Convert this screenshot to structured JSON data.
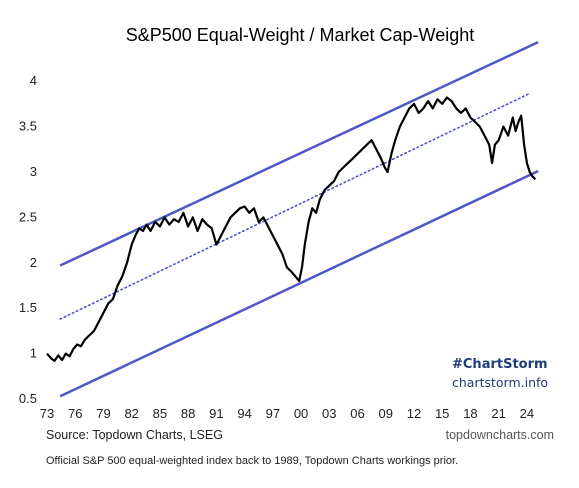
{
  "chart_data": {
    "type": "line",
    "title": "S&P500 Equal-Weight / Market Cap-Weight",
    "xlabel": "",
    "ylabel": "",
    "xlim": [
      1973.0,
      2025.5
    ],
    "ylim": [
      0.5,
      4.2
    ],
    "x_tick_labels": [
      "73",
      "76",
      "79",
      "82",
      "85",
      "88",
      "91",
      "94",
      "97",
      "00",
      "03",
      "06",
      "09",
      "12",
      "15",
      "18",
      "21",
      "24"
    ],
    "x_tick_years": [
      1973,
      1976,
      1979,
      1982,
      1985,
      1988,
      1991,
      1994,
      1997,
      2000,
      2003,
      2006,
      2009,
      2012,
      2015,
      2018,
      2021,
      2024
    ],
    "y_ticks": [
      0.5,
      1,
      1.5,
      2,
      2.5,
      3,
      3.5,
      4
    ],
    "y_tick_labels": [
      "0.5",
      "1",
      "1.5",
      "2",
      "2.5",
      "3",
      "3.5",
      "4"
    ],
    "series": [
      {
        "color": "#000000",
        "x": [
          1973.0,
          1973.4,
          1973.8,
          1974.2,
          1974.6,
          1975.0,
          1975.4,
          1975.8,
          1976.2,
          1976.6,
          1977.0,
          1977.5,
          1978.0,
          1978.5,
          1979.0,
          1979.5,
          1980.0,
          1980.5,
          1981.0,
          1981.5,
          1982.0,
          1982.4,
          1982.8,
          1983.2,
          1983.6,
          1984.0,
          1984.5,
          1985.0,
          1985.5,
          1986.0,
          1986.5,
          1987.0,
          1987.5,
          1988.0,
          1988.5,
          1989.0,
          1989.5,
          1990.0,
          1990.5,
          1991.0,
          1991.5,
          1992.0,
          1992.5,
          1993.0,
          1993.5,
          1994.0,
          1994.5,
          1995.0,
          1995.5,
          1996.0,
          1996.5,
          1997.0,
          1997.5,
          1998.0,
          1998.5,
          1999.0,
          1999.4,
          1999.8,
          2000.1,
          2000.4,
          2000.8,
          2001.2,
          2001.6,
          2002.0,
          2002.5,
          2003.0,
          2003.5,
          2004.0,
          2004.5,
          2005.0,
          2005.5,
          2006.0,
          2006.5,
          2007.0,
          2007.5,
          2008.0,
          2008.5,
          2008.9,
          2009.2,
          2009.6,
          2010.0,
          2010.5,
          2011.0,
          2011.5,
          2012.0,
          2012.5,
          2013.0,
          2013.5,
          2014.0,
          2014.5,
          2015.0,
          2015.5,
          2016.0,
          2016.5,
          2017.0,
          2017.5,
          2018.0,
          2018.5,
          2019.0,
          2019.5,
          2020.0,
          2020.3,
          2020.6,
          2021.0,
          2021.5,
          2022.0,
          2022.5,
          2022.8,
          2023.1,
          2023.4,
          2023.7,
          2024.0,
          2024.3,
          2024.6,
          2024.9
        ],
        "y": [
          1.0,
          0.95,
          0.92,
          0.98,
          0.93,
          1.0,
          0.97,
          1.05,
          1.1,
          1.08,
          1.15,
          1.2,
          1.25,
          1.35,
          1.45,
          1.55,
          1.6,
          1.75,
          1.85,
          2.0,
          2.2,
          2.3,
          2.38,
          2.35,
          2.42,
          2.35,
          2.45,
          2.4,
          2.5,
          2.42,
          2.48,
          2.45,
          2.55,
          2.4,
          2.5,
          2.35,
          2.48,
          2.42,
          2.38,
          2.2,
          2.3,
          2.4,
          2.5,
          2.55,
          2.6,
          2.62,
          2.55,
          2.6,
          2.45,
          2.5,
          2.4,
          2.3,
          2.2,
          2.1,
          1.95,
          1.9,
          1.85,
          1.8,
          1.95,
          2.2,
          2.45,
          2.6,
          2.55,
          2.7,
          2.8,
          2.85,
          2.9,
          3.0,
          3.05,
          3.1,
          3.15,
          3.2,
          3.25,
          3.3,
          3.35,
          3.25,
          3.15,
          3.05,
          3.0,
          3.2,
          3.35,
          3.5,
          3.6,
          3.7,
          3.75,
          3.65,
          3.7,
          3.78,
          3.7,
          3.8,
          3.75,
          3.82,
          3.78,
          3.7,
          3.65,
          3.7,
          3.6,
          3.55,
          3.5,
          3.4,
          3.3,
          3.1,
          3.3,
          3.35,
          3.5,
          3.4,
          3.6,
          3.45,
          3.55,
          3.62,
          3.3,
          3.1,
          3.0,
          2.95,
          2.92
        ]
      }
    ],
    "trend_channel": {
      "color": "#4f56c9",
      "upper": {
        "x": [
          1974.4,
          2025.2
        ],
        "y": [
          1.97,
          4.43
        ]
      },
      "lower": {
        "x": [
          1974.4,
          2025.2
        ],
        "y": [
          0.53,
          3.01
        ]
      },
      "mid": {
        "x": [
          1974.4,
          2024.4
        ],
        "y": [
          1.38,
          3.87
        ],
        "style": "dotted"
      }
    },
    "annotations": {
      "hashtag": "#ChartStorm",
      "url": "chartstorm.info"
    },
    "grid": false,
    "legend": "none"
  },
  "footer": {
    "source": "Source: Topdown Charts, LSEG",
    "site": "topdowncharts.com",
    "note": "Official S&P 500 equal-weighted index back to 1989, Topdown Charts workings prior."
  }
}
